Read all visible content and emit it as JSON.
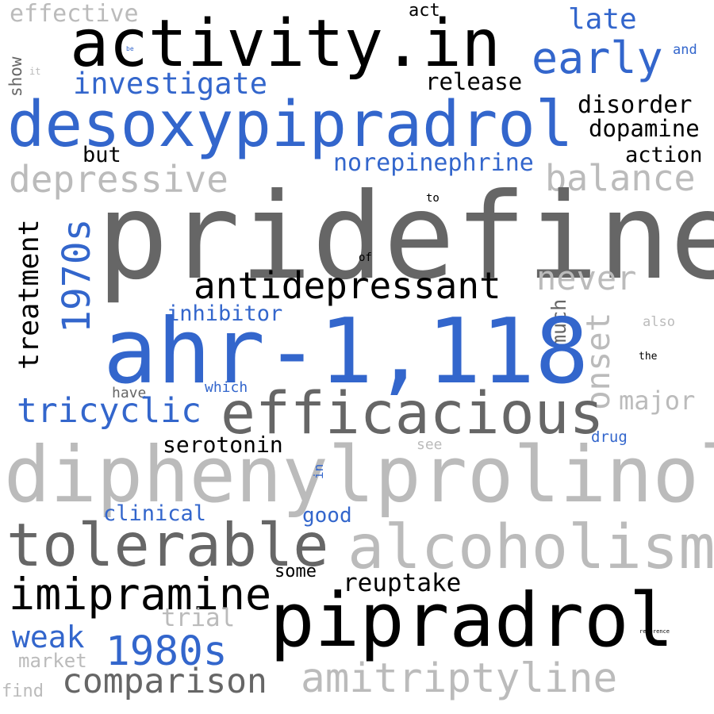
{
  "palette": {
    "black": "#000000",
    "blue": "#3366cc",
    "dark_gray": "#666666",
    "light_gray": "#bbbbbb"
  },
  "words": {
    "effective": "effective",
    "act": "act",
    "activity_in": "activity.in",
    "late": "late",
    "early": "early",
    "and": "and",
    "show": "show",
    "be": "be",
    "it": "it",
    "investigate": "investigate",
    "release": "release",
    "desoxypipradrol": "desoxypipradrol",
    "disorder": "disorder",
    "dopamine": "dopamine",
    "but": "but",
    "action": "action",
    "norepinephrine": "norepinephrine",
    "depressive": "depressive",
    "balance": "balance",
    "to": "to",
    "pridefine": "pridefine",
    "treatment": "treatment",
    "1970s": "1970s",
    "of": "of",
    "antidepressant": "antidepressant",
    "never": "never",
    "inhibitor": "inhibitor",
    "much": "much",
    "onset": "onset",
    "also": "also",
    "ahr_1118": "ahr-1,118",
    "the": "the",
    "have": "have",
    "which": "which",
    "tricyclic": "tricyclic",
    "efficacious": "efficacious",
    "major": "major",
    "drug": "drug",
    "serotonin": "serotonin",
    "see": "see",
    "diphenylprolinol": "diphenylprolinol",
    "in": "in",
    "clinical": "clinical",
    "good": "good",
    "tolerable": "tolerable",
    "alcoholism": "alcoholism",
    "some": "some",
    "reuptake": "reuptake",
    "imipramine": "imipramine",
    "pipradrol": "pipradrol",
    "trial": "trial",
    "weak": "weak",
    "1980s": "1980s",
    "reference": "reference",
    "market": "market",
    "comparison": "comparison",
    "amitriptyline": "amitriptyline",
    "find": "find"
  }
}
